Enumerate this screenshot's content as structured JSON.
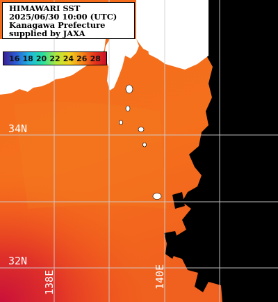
{
  "title": {
    "line1": "HIMAWARI SST",
    "line2": "2025/06/30 10:00 (UTC)",
    "line3": "Kanagawa Prefecture",
    "line4": "supplied by JAXA"
  },
  "legend": {
    "ticks": [
      "16",
      "18",
      "20",
      "22",
      "24",
      "26",
      "28"
    ],
    "colors": {
      "low": "#3a1f8f",
      "mid": "#f2d21e",
      "high": "#c8102a"
    }
  },
  "grid": {
    "lat_labels": [
      "34N",
      "32N"
    ],
    "lon_labels": [
      "138E",
      "140E"
    ]
  },
  "colors": {
    "sea_warm": "#f06a1c",
    "sea_cool": "#c8102a",
    "land": "#ffffff",
    "no_data": "#000000",
    "grid": "#d0d0d0"
  }
}
